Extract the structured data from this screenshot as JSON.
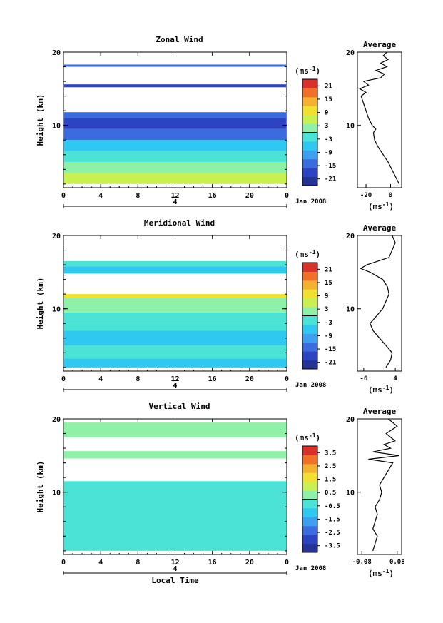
{
  "chart_data": [
    {
      "type": "heatmap",
      "title": "Zonal Wind",
      "ylabel": "Height (km)",
      "x_ticks": [
        "0",
        "4",
        "8",
        "12",
        "16",
        "20",
        "0"
      ],
      "date_tick": "4",
      "date_label": "Jan 2008",
      "y_ticks": [
        "20",
        "10"
      ],
      "xlim": [
        0,
        24
      ],
      "ylim": [
        1.5,
        20
      ],
      "colorbar": {
        "unit_base": "(ms",
        "unit_exp": "-1",
        "unit_close": ")",
        "ticks": [
          "21",
          "15",
          "9",
          "3",
          "-3",
          "-9",
          "-15",
          "-21"
        ],
        "range": [
          -24,
          24
        ]
      },
      "bands": [
        {
          "y": [
            2,
            3.5
          ],
          "value": 4
        },
        {
          "y": [
            3.5,
            5
          ],
          "value": 1
        },
        {
          "y": [
            5,
            6.5
          ],
          "value": -3
        },
        {
          "y": [
            6.5,
            8
          ],
          "value": -8
        },
        {
          "y": [
            8,
            9.5
          ],
          "value": -15
        },
        {
          "y": [
            9.5,
            11
          ],
          "value": -19
        },
        {
          "y": [
            11,
            11.8
          ],
          "value": -13
        },
        {
          "y": [
            15.2,
            15.6
          ],
          "value": -18
        },
        {
          "y": [
            18,
            18.3
          ],
          "value": -16
        }
      ],
      "profile": {
        "title": "Average",
        "xlabel_base": "(ms",
        "xlabel_exp": "-1",
        "xlabel_close": ")",
        "x_ticks": [
          "-20",
          "0"
        ],
        "xlim": [
          -27,
          9
        ],
        "y": [
          2,
          3,
          4,
          5,
          6,
          7,
          8,
          9,
          9.5,
          10,
          11,
          12,
          13,
          14,
          14.5,
          15,
          15.5,
          16,
          16.5,
          17,
          17.5,
          18,
          18.5,
          19,
          19.5,
          20
        ],
        "x": [
          7,
          4,
          1,
          -2,
          -6,
          -10,
          -13,
          -14,
          -12,
          -15,
          -18,
          -20,
          -22,
          -24,
          -20,
          -25,
          -18,
          -22,
          -8,
          -5,
          -12,
          -3,
          -8,
          -2,
          -6,
          -3
        ]
      }
    },
    {
      "type": "heatmap",
      "title": "Meridional Wind",
      "ylabel": "Height (km)",
      "x_ticks": [
        "0",
        "4",
        "8",
        "12",
        "16",
        "20",
        "0"
      ],
      "date_tick": "4",
      "date_label": "Jan 2008",
      "y_ticks": [
        "20",
        "10"
      ],
      "xlim": [
        0,
        24
      ],
      "ylim": [
        1.5,
        20
      ],
      "colorbar": {
        "unit_base": "(ms",
        "unit_exp": "-1",
        "unit_close": ")",
        "ticks": [
          "21",
          "15",
          "9",
          "3",
          "-3",
          "-9",
          "-15",
          "-21"
        ],
        "range": [
          -24,
          24
        ]
      },
      "bands": [
        {
          "y": [
            2,
            3.2
          ],
          "value": -6
        },
        {
          "y": [
            3.2,
            5
          ],
          "value": -3
        },
        {
          "y": [
            5,
            7
          ],
          "value": -5
        },
        {
          "y": [
            7,
            8.5
          ],
          "value": -4
        },
        {
          "y": [
            8.5,
            9.5
          ],
          "value": -1
        },
        {
          "y": [
            9.5,
            11.5
          ],
          "value": 3
        },
        {
          "y": [
            11.5,
            12
          ],
          "value": 8
        },
        {
          "y": [
            14.8,
            15.8
          ],
          "value": -7
        },
        {
          "y": [
            15.8,
            16.5
          ],
          "value": -1
        }
      ],
      "profile": {
        "title": "Average",
        "xlabel_base": "(ms",
        "xlabel_exp": "-1",
        "xlabel_close": ")",
        "x_ticks": [
          "-6",
          "4"
        ],
        "xlim": [
          -8,
          6
        ],
        "y": [
          2,
          3,
          4,
          5,
          6,
          7,
          8,
          9,
          10,
          11,
          12,
          13,
          14,
          15,
          15.5,
          16,
          17,
          18,
          19,
          20
        ],
        "x": [
          1,
          2.5,
          3,
          1,
          -1,
          -3,
          -4,
          -2,
          0,
          1,
          2,
          1.5,
          0,
          -4,
          -7,
          -5,
          2,
          3,
          4,
          3
        ]
      }
    },
    {
      "type": "heatmap",
      "title": "Vertical Wind",
      "ylabel": "Height (km)",
      "xlabel": "Local Time",
      "x_ticks": [
        "0",
        "4",
        "8",
        "12",
        "16",
        "20",
        "0"
      ],
      "date_tick": "4",
      "date_label": "Jan 2008",
      "y_ticks": [
        "20",
        "10"
      ],
      "xlim": [
        0,
        24
      ],
      "ylim": [
        1.5,
        20
      ],
      "colorbar": {
        "unit_base": "(ms",
        "unit_exp": "-1",
        "unit_close": ")",
        "ticks": [
          "3.5",
          "2.5",
          "1.5",
          "0.5",
          "-0.5",
          "-1.5",
          "-2.5",
          "-3.5"
        ],
        "range": [
          -4,
          4
        ]
      },
      "bands": [
        {
          "y": [
            2,
            11.5
          ],
          "value": -0.3
        },
        {
          "y": [
            14.6,
            15.6
          ],
          "value": 0
        },
        {
          "y": [
            17.5,
            19.5
          ],
          "value": 0.1
        }
      ],
      "profile": {
        "title": "Average",
        "xlabel_base": "(ms",
        "xlabel_exp": "-1",
        "xlabel_close": ")",
        "x_ticks": [
          "-0.08",
          "0.08"
        ],
        "xlim": [
          -0.1,
          0.1
        ],
        "y": [
          2,
          3,
          4,
          5,
          6,
          7,
          8,
          9,
          10,
          11,
          12,
          13,
          14,
          14.5,
          15,
          15.5,
          16,
          16.5,
          17,
          18,
          19,
          20
        ],
        "x": [
          -0.03,
          -0.02,
          -0.01,
          -0.03,
          -0.02,
          -0.01,
          -0.02,
          0,
          0.01,
          0,
          0.02,
          0.04,
          0.06,
          -0.05,
          0.09,
          -0.03,
          0.05,
          0.02,
          0.07,
          0.03,
          0.08,
          0.04
        ]
      }
    }
  ]
}
